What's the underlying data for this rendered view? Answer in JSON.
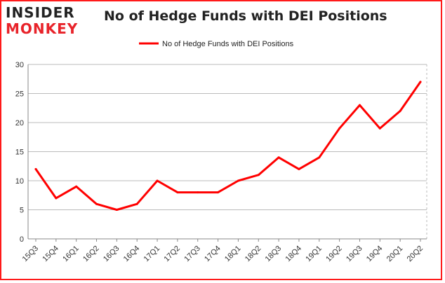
{
  "header": {
    "logo_line1": "INSIDER",
    "logo_line2": "MONKEY",
    "title": "No of Hedge Funds with DEI Positions"
  },
  "colors": {
    "line": "#ff0000",
    "frame": "#ff1a1a",
    "logo_accent": "#e8232a",
    "grid": "#bbbbbb"
  },
  "chart_data": {
    "type": "line",
    "title": "No of Hedge Funds with DEI Positions",
    "xlabel": "",
    "ylabel": "",
    "ylim": [
      0,
      30
    ],
    "yticks": [
      0,
      5,
      10,
      15,
      20,
      25,
      30
    ],
    "grid": true,
    "legend_position": "top-center",
    "categories": [
      "15Q3",
      "15Q4",
      "16Q1",
      "16Q2",
      "16Q3",
      "16Q4",
      "17Q1",
      "17Q2",
      "17Q3",
      "17Q4",
      "18Q1",
      "18Q2",
      "18Q3",
      "18Q4",
      "19Q1",
      "19Q2",
      "19Q3",
      "19Q4",
      "20Q1",
      "20Q2"
    ],
    "series": [
      {
        "name": "No of Hedge Funds with DEI Positions",
        "values": [
          12,
          7,
          9,
          6,
          5,
          6,
          10,
          8,
          8,
          8,
          10,
          11,
          14,
          12,
          14,
          19,
          23,
          19,
          22,
          27
        ]
      }
    ]
  }
}
